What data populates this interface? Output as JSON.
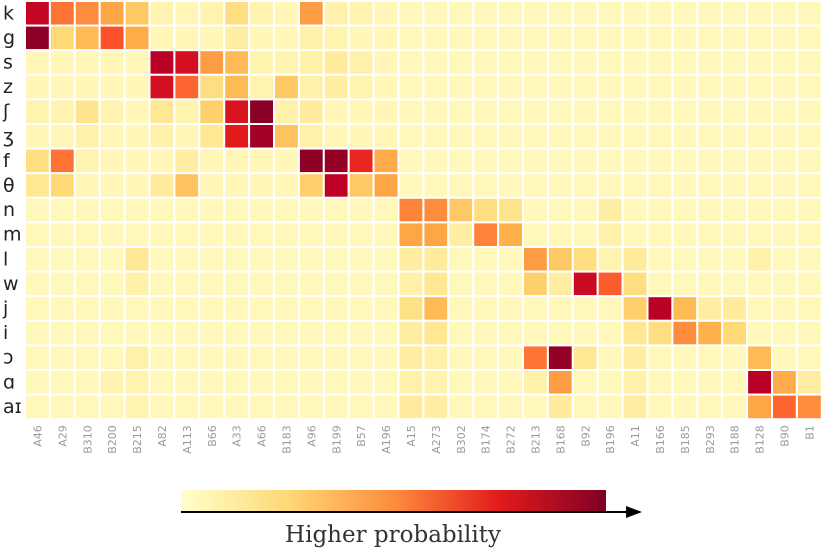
{
  "chart_data": {
    "type": "heatmap",
    "rows": [
      "k",
      "g",
      "s",
      "z",
      "ʃ",
      "ʒ",
      "f",
      "θ",
      "n",
      "m",
      "l",
      "w",
      "j",
      "i",
      "ɔ",
      "ɑ",
      "aɪ"
    ],
    "columns": [
      "A46",
      "A29",
      "B310",
      "B200",
      "B215",
      "A82",
      "A113",
      "B66",
      "A33",
      "A66",
      "B183",
      "A96",
      "B199",
      "B57",
      "A196",
      "A15",
      "A273",
      "B302",
      "B174",
      "B272",
      "B213",
      "B168",
      "B92",
      "B196",
      "A11",
      "B166",
      "B185",
      "B293",
      "B188",
      "B128",
      "B90",
      "B1"
    ],
    "values": [
      [
        0.85,
        0.55,
        0.5,
        0.42,
        0.3,
        0.08,
        0.06,
        0.08,
        0.22,
        0.08,
        0.06,
        0.45,
        0.1,
        0.08,
        0.06,
        0.05,
        0.05,
        0.05,
        0.05,
        0.05,
        0.05,
        0.05,
        0.05,
        0.05,
        0.05,
        0.05,
        0.05,
        0.05,
        0.05,
        0.05,
        0.05,
        0.05
      ],
      [
        0.97,
        0.25,
        0.35,
        0.62,
        0.4,
        0.06,
        0.06,
        0.06,
        0.12,
        0.06,
        0.06,
        0.1,
        0.08,
        0.06,
        0.06,
        0.05,
        0.05,
        0.05,
        0.05,
        0.05,
        0.05,
        0.05,
        0.05,
        0.05,
        0.05,
        0.05,
        0.05,
        0.05,
        0.05,
        0.05,
        0.05,
        0.05
      ],
      [
        0.06,
        0.06,
        0.06,
        0.06,
        0.06,
        0.88,
        0.8,
        0.45,
        0.35,
        0.08,
        0.08,
        0.1,
        0.14,
        0.1,
        0.06,
        0.05,
        0.05,
        0.05,
        0.05,
        0.05,
        0.05,
        0.05,
        0.05,
        0.05,
        0.05,
        0.05,
        0.05,
        0.05,
        0.05,
        0.05,
        0.05,
        0.05
      ],
      [
        0.06,
        0.06,
        0.06,
        0.06,
        0.06,
        0.8,
        0.58,
        0.22,
        0.35,
        0.08,
        0.3,
        0.1,
        0.12,
        0.08,
        0.06,
        0.05,
        0.05,
        0.05,
        0.05,
        0.05,
        0.05,
        0.05,
        0.05,
        0.05,
        0.05,
        0.05,
        0.05,
        0.05,
        0.05,
        0.05,
        0.05,
        0.05
      ],
      [
        0.08,
        0.08,
        0.18,
        0.08,
        0.06,
        0.16,
        0.08,
        0.28,
        0.78,
        0.98,
        0.1,
        0.14,
        0.06,
        0.06,
        0.06,
        0.05,
        0.05,
        0.05,
        0.05,
        0.05,
        0.05,
        0.05,
        0.05,
        0.05,
        0.05,
        0.05,
        0.05,
        0.05,
        0.05,
        0.05,
        0.05,
        0.05
      ],
      [
        0.06,
        0.06,
        0.1,
        0.06,
        0.06,
        0.1,
        0.06,
        0.16,
        0.75,
        0.93,
        0.32,
        0.1,
        0.06,
        0.06,
        0.06,
        0.05,
        0.05,
        0.05,
        0.05,
        0.05,
        0.05,
        0.05,
        0.05,
        0.05,
        0.05,
        0.05,
        0.05,
        0.05,
        0.05,
        0.05,
        0.05,
        0.05
      ],
      [
        0.22,
        0.55,
        0.08,
        0.06,
        0.06,
        0.06,
        0.12,
        0.06,
        0.06,
        0.06,
        0.06,
        0.97,
        0.96,
        0.72,
        0.4,
        0.05,
        0.05,
        0.05,
        0.05,
        0.05,
        0.05,
        0.05,
        0.05,
        0.05,
        0.05,
        0.05,
        0.05,
        0.05,
        0.05,
        0.05,
        0.05,
        0.05
      ],
      [
        0.16,
        0.25,
        0.06,
        0.06,
        0.06,
        0.14,
        0.32,
        0.06,
        0.06,
        0.06,
        0.06,
        0.28,
        0.87,
        0.3,
        0.42,
        0.05,
        0.05,
        0.05,
        0.05,
        0.05,
        0.05,
        0.05,
        0.05,
        0.05,
        0.05,
        0.05,
        0.05,
        0.05,
        0.05,
        0.05,
        0.05,
        0.05
      ],
      [
        0.05,
        0.05,
        0.05,
        0.05,
        0.05,
        0.05,
        0.05,
        0.05,
        0.05,
        0.05,
        0.05,
        0.05,
        0.05,
        0.05,
        0.05,
        0.52,
        0.5,
        0.3,
        0.22,
        0.18,
        0.05,
        0.05,
        0.05,
        0.12,
        0.05,
        0.05,
        0.05,
        0.05,
        0.05,
        0.05,
        0.05,
        0.05
      ],
      [
        0.05,
        0.05,
        0.05,
        0.05,
        0.05,
        0.05,
        0.05,
        0.05,
        0.05,
        0.05,
        0.05,
        0.05,
        0.05,
        0.05,
        0.05,
        0.42,
        0.42,
        0.12,
        0.52,
        0.38,
        0.05,
        0.05,
        0.05,
        0.1,
        0.05,
        0.05,
        0.05,
        0.05,
        0.05,
        0.05,
        0.05,
        0.05
      ],
      [
        0.05,
        0.05,
        0.05,
        0.05,
        0.16,
        0.05,
        0.05,
        0.05,
        0.05,
        0.05,
        0.05,
        0.05,
        0.05,
        0.05,
        0.05,
        0.12,
        0.14,
        0.05,
        0.05,
        0.05,
        0.45,
        0.3,
        0.22,
        0.08,
        0.14,
        0.05,
        0.05,
        0.05,
        0.05,
        0.1,
        0.05,
        0.05
      ],
      [
        0.05,
        0.05,
        0.05,
        0.05,
        0.1,
        0.05,
        0.05,
        0.05,
        0.05,
        0.05,
        0.05,
        0.05,
        0.05,
        0.05,
        0.05,
        0.1,
        0.16,
        0.05,
        0.05,
        0.05,
        0.28,
        0.12,
        0.83,
        0.6,
        0.22,
        0.05,
        0.05,
        0.05,
        0.05,
        0.05,
        0.05,
        0.05
      ],
      [
        0.05,
        0.05,
        0.05,
        0.05,
        0.05,
        0.05,
        0.05,
        0.05,
        0.05,
        0.05,
        0.05,
        0.05,
        0.05,
        0.05,
        0.05,
        0.2,
        0.35,
        0.05,
        0.05,
        0.05,
        0.05,
        0.05,
        0.05,
        0.05,
        0.28,
        0.88,
        0.35,
        0.12,
        0.14,
        0.05,
        0.05,
        0.05
      ],
      [
        0.05,
        0.05,
        0.05,
        0.05,
        0.05,
        0.05,
        0.05,
        0.05,
        0.05,
        0.05,
        0.05,
        0.05,
        0.05,
        0.05,
        0.05,
        0.12,
        0.16,
        0.05,
        0.05,
        0.05,
        0.05,
        0.05,
        0.05,
        0.05,
        0.16,
        0.22,
        0.5,
        0.38,
        0.25,
        0.05,
        0.05,
        0.05
      ],
      [
        0.05,
        0.05,
        0.05,
        0.05,
        0.1,
        0.05,
        0.05,
        0.05,
        0.05,
        0.05,
        0.05,
        0.05,
        0.05,
        0.05,
        0.05,
        0.12,
        0.1,
        0.05,
        0.05,
        0.05,
        0.55,
        0.96,
        0.16,
        0.05,
        0.12,
        0.05,
        0.05,
        0.05,
        0.05,
        0.35,
        0.05,
        0.05
      ],
      [
        0.05,
        0.05,
        0.05,
        0.08,
        0.08,
        0.05,
        0.05,
        0.05,
        0.05,
        0.05,
        0.05,
        0.05,
        0.05,
        0.05,
        0.05,
        0.1,
        0.08,
        0.05,
        0.05,
        0.05,
        0.1,
        0.45,
        0.05,
        0.05,
        0.1,
        0.05,
        0.05,
        0.05,
        0.05,
        0.88,
        0.4,
        0.12
      ],
      [
        0.05,
        0.05,
        0.05,
        0.05,
        0.08,
        0.05,
        0.05,
        0.05,
        0.05,
        0.05,
        0.05,
        0.05,
        0.05,
        0.05,
        0.05,
        0.14,
        0.12,
        0.05,
        0.05,
        0.05,
        0.05,
        0.14,
        0.05,
        0.05,
        0.12,
        0.05,
        0.05,
        0.05,
        0.05,
        0.42,
        0.58,
        0.5
      ]
    ],
    "colorbar": {
      "label": "Higher probability",
      "colormap": "YlOrRd",
      "range": [
        0,
        1
      ]
    },
    "grid": true
  }
}
